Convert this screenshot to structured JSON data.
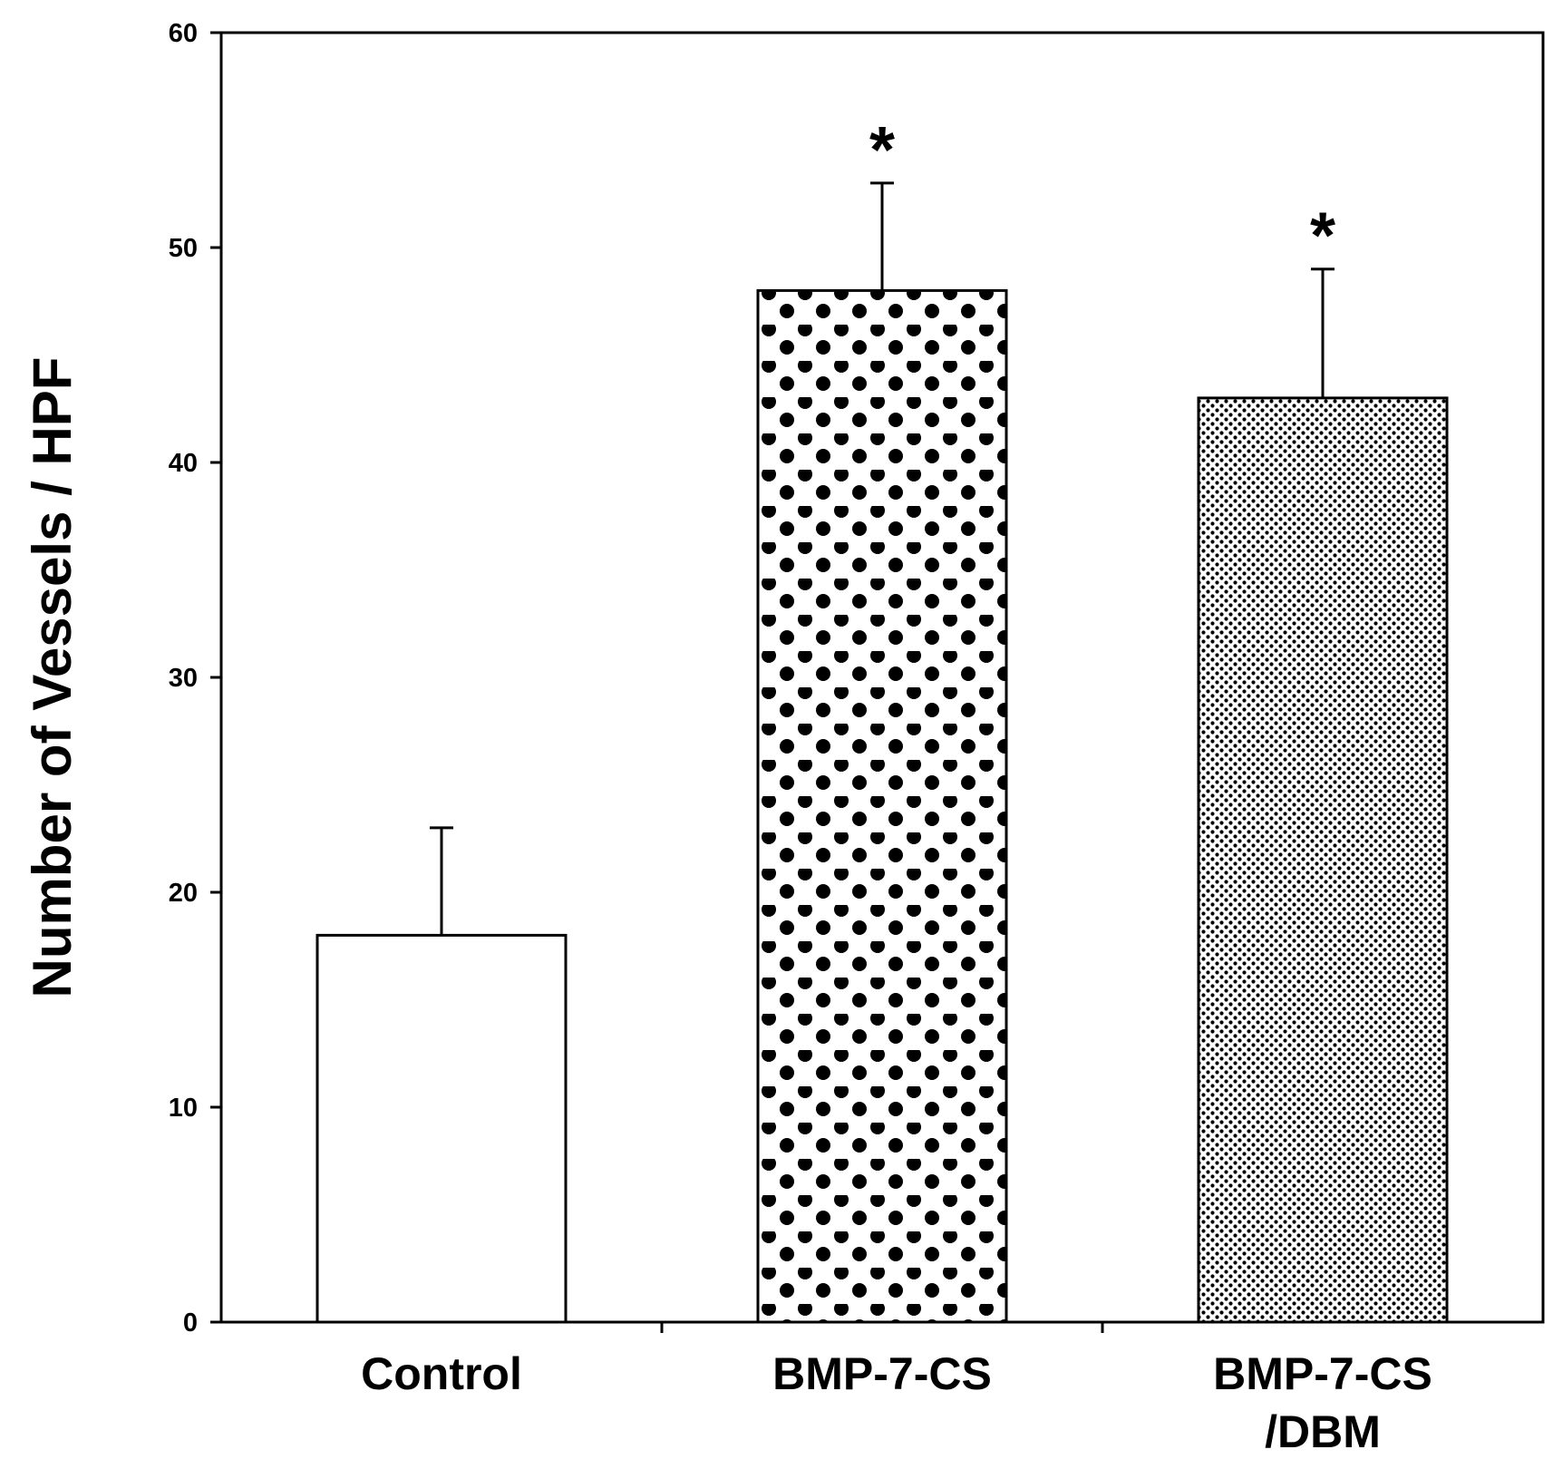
{
  "chart_data": {
    "type": "bar",
    "title": "",
    "xlabel": "",
    "ylabel": "Number of Vessels / HPF",
    "ylim": [
      0,
      60
    ],
    "yticks": [
      "0",
      "10",
      "20",
      "30",
      "40",
      "50",
      "60"
    ],
    "grid": false,
    "categories": [
      {
        "lines": [
          "Control"
        ]
      },
      {
        "lines": [
          "BMP-7-CS"
        ]
      },
      {
        "lines": [
          "BMP-7-CS",
          "/DBM"
        ]
      }
    ],
    "values": [
      18,
      48,
      43
    ],
    "errors": [
      5,
      5,
      6
    ],
    "fills": [
      "none",
      "large-dots",
      "fine-crosshatch"
    ],
    "annotations": [
      "",
      "*",
      "*"
    ],
    "colors": {
      "bar_stroke": "#000000",
      "background": "#ffffff",
      "dot": "#000000"
    }
  }
}
